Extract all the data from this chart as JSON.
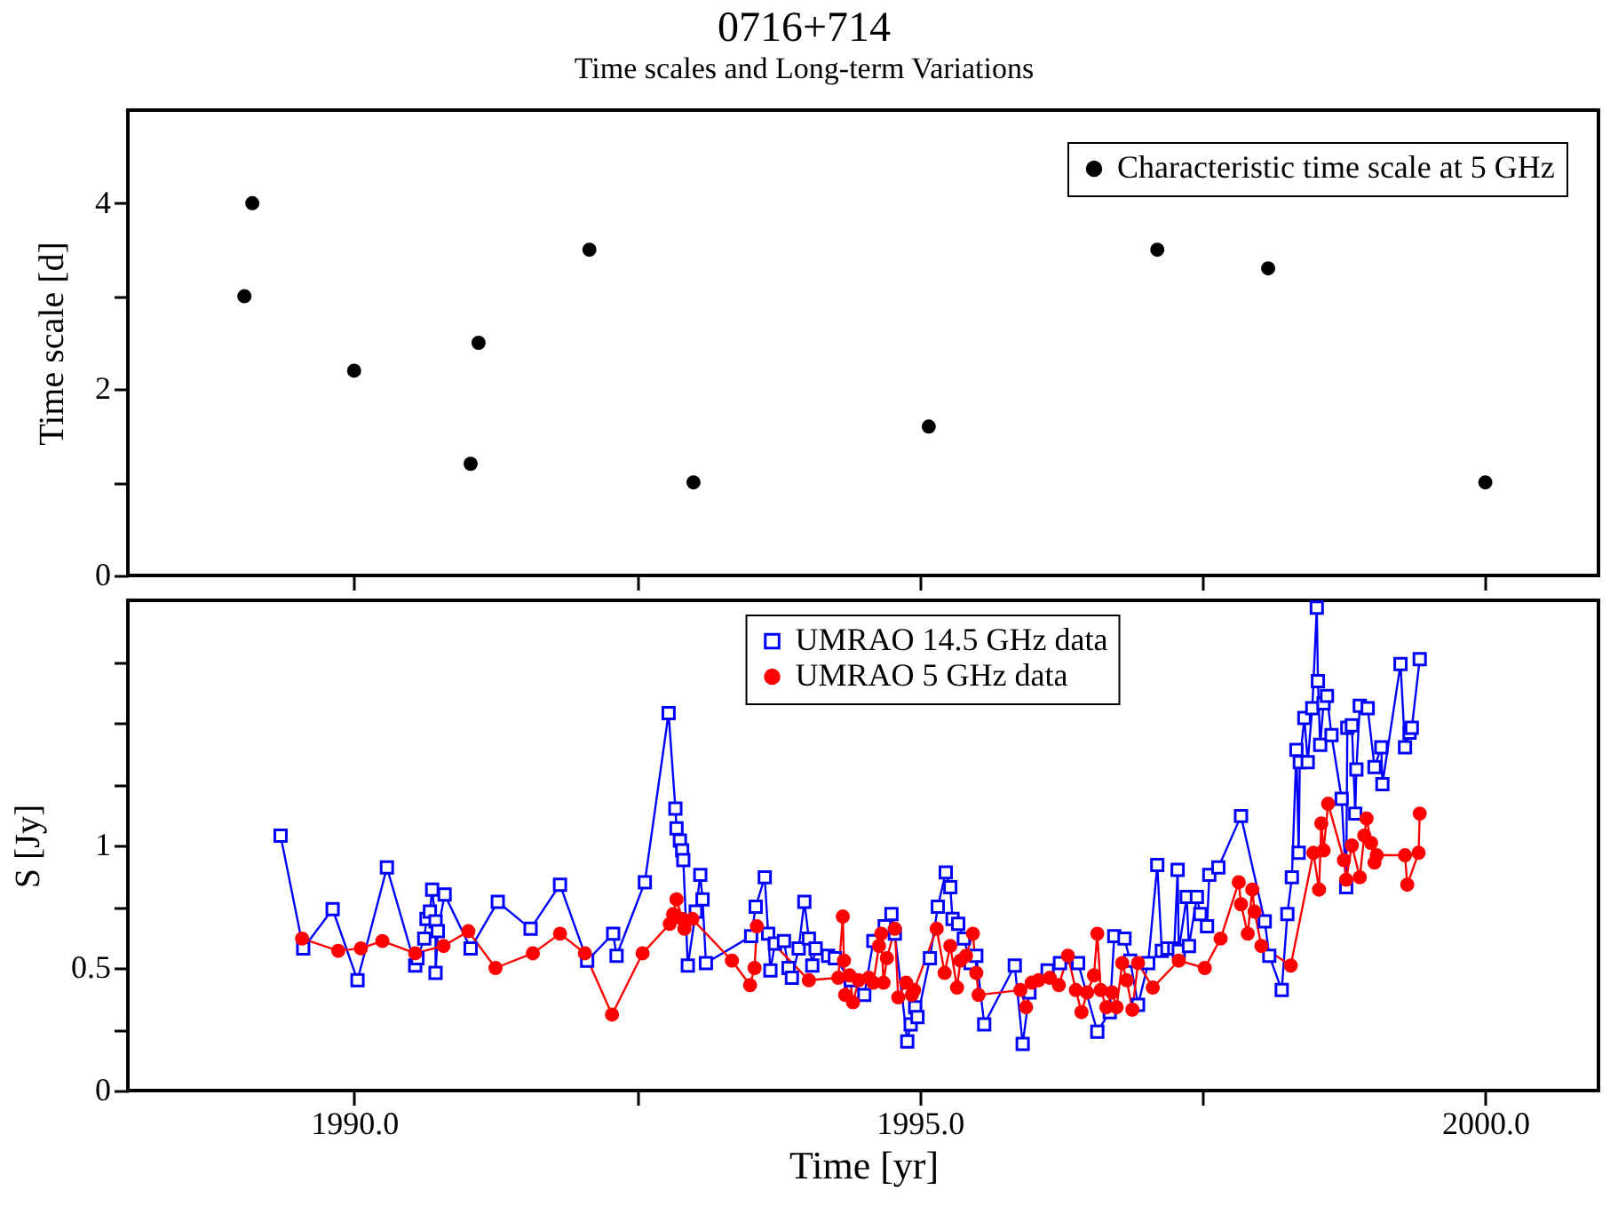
{
  "chart_data": [
    {
      "type": "scatter",
      "title": "0716+714",
      "subtitle": "Time scales and Long-term Variations",
      "ylabel": "Time scale [d]",
      "xlim": [
        1988,
        2001
      ],
      "xticks": [
        1990,
        1992.5,
        1995,
        1997.5,
        2000
      ],
      "ylim": [
        0,
        5
      ],
      "yticks": [
        0,
        {
          "value": 1,
          "label": null
        },
        2,
        {
          "value": 3,
          "label": null
        },
        4
      ],
      "tick_labels": "y",
      "legend": "top right",
      "marker": "circle",
      "grid": false,
      "series": [
        {
          "name": "Characteristic time scale at 5 GHz",
          "color": "#000000",
          "x": [
            1989.03,
            1989.1,
            1990.0,
            1991.03,
            1991.1,
            1992.08,
            1993.0,
            1995.08,
            1997.1,
            1998.08,
            2000.0
          ],
          "values": [
            3.0,
            4.0,
            2.2,
            1.2,
            2.5,
            3.5,
            1.0,
            1.6,
            3.5,
            3.3,
            1.0
          ]
        }
      ]
    },
    {
      "type": "line",
      "xlabel": "Time [yr]",
      "ylabel": "S [Jy]",
      "xlim": [
        1988,
        2001
      ],
      "xticks": [
        {
          "value": 1990,
          "label": "1990.0"
        },
        {
          "value": 1992.5,
          "label": null
        },
        {
          "value": 1995,
          "label": "1995.0"
        },
        {
          "value": 1997.5,
          "label": null
        },
        {
          "value": 2000,
          "label": "2000.0"
        }
      ],
      "ylim": [
        0,
        2
      ],
      "yticks": [
        0,
        {
          "value": 0.25,
          "label": null
        },
        0.5,
        {
          "value": 0.75,
          "label": null
        },
        1,
        {
          "value": 1.25,
          "label": null
        },
        {
          "value": 1.5,
          "label": null
        },
        {
          "value": 1.75,
          "label": null
        }
      ],
      "legend": "top",
      "grid": false,
      "series": [
        {
          "name": "UMRAO 14.5 GHz data",
          "color": "#0000ff",
          "marker": "square",
          "x": [
            1989.35,
            1989.55,
            1989.81,
            1990.03,
            1990.29,
            1990.54,
            1990.56,
            1990.62,
            1990.64,
            1990.67,
            1990.69,
            1990.72,
            1990.72,
            1990.74,
            1990.8,
            1991.03,
            1991.27,
            1991.56,
            1991.82,
            1992.06,
            1992.29,
            1992.32,
            1992.57,
            1992.78,
            1992.84,
            1992.85,
            1992.88,
            1992.9,
            1992.91,
            1992.95,
            1993.02,
            1993.06,
            1993.08,
            1993.11,
            1993.51,
            1993.55,
            1993.63,
            1993.66,
            1993.68,
            1993.72,
            1993.8,
            1993.84,
            1993.87,
            1993.93,
            1993.98,
            1994.02,
            1994.05,
            1994.08,
            1994.19,
            1994.25,
            1994.39,
            1994.51,
            1994.59,
            1994.69,
            1994.75,
            1994.78,
            1994.89,
            1994.92,
            1994.96,
            1994.98,
            1995.09,
            1995.16,
            1995.23,
            1995.27,
            1995.29,
            1995.34,
            1995.39,
            1995.45,
            1995.5,
            1995.57,
            1995.84,
            1995.91,
            1995.97,
            1996.13,
            1996.24,
            1996.4,
            1996.57,
            1996.68,
            1996.72,
            1996.81,
            1996.86,
            1996.93,
            1997.02,
            1997.1,
            1997.14,
            1997.19,
            1997.25,
            1997.28,
            1997.29,
            1997.36,
            1997.38,
            1997.45,
            1997.48,
            1997.54,
            1997.56,
            1997.64,
            1997.84,
            1998.05,
            1998.09,
            1998.2,
            1998.25,
            1998.29,
            1998.33,
            1998.35,
            1998.36,
            1998.4,
            1998.43,
            1998.47,
            1998.51,
            1998.52,
            1998.54,
            1998.57,
            1998.6,
            1998.64,
            1998.73,
            1998.77,
            1998.78,
            1998.82,
            1998.85,
            1998.86,
            1998.89,
            1998.96,
            1999.02,
            1999.08,
            1999.09,
            1999.25,
            1999.29,
            1999.33,
            1999.35,
            1999.42
          ],
          "values": [
            1.04,
            0.58,
            0.74,
            0.45,
            0.91,
            0.51,
            0.54,
            0.62,
            0.7,
            0.73,
            0.82,
            0.69,
            0.48,
            0.65,
            0.8,
            0.58,
            0.77,
            0.66,
            0.84,
            0.53,
            0.64,
            0.55,
            0.85,
            1.54,
            1.15,
            1.07,
            1.02,
            0.98,
            0.94,
            0.51,
            0.73,
            0.88,
            0.78,
            0.52,
            0.63,
            0.75,
            0.87,
            0.64,
            0.49,
            0.6,
            0.61,
            0.5,
            0.46,
            0.58,
            0.77,
            0.62,
            0.51,
            0.58,
            0.55,
            0.54,
            0.45,
            0.39,
            0.61,
            0.67,
            0.72,
            0.64,
            0.2,
            0.27,
            0.34,
            0.3,
            0.54,
            0.75,
            0.89,
            0.83,
            0.7,
            0.68,
            0.62,
            0.52,
            0.55,
            0.27,
            0.51,
            0.19,
            0.4,
            0.49,
            0.52,
            0.52,
            0.24,
            0.32,
            0.63,
            0.62,
            0.53,
            0.35,
            0.52,
            0.92,
            0.57,
            0.58,
            0.58,
            0.9,
            0.57,
            0.79,
            0.59,
            0.79,
            0.72,
            0.67,
            0.88,
            0.91,
            1.12,
            0.69,
            0.55,
            0.41,
            0.72,
            0.87,
            1.39,
            0.97,
            1.34,
            1.52,
            1.34,
            1.56,
            1.97,
            1.67,
            1.41,
            1.58,
            1.61,
            1.45,
            1.19,
            0.83,
            1.48,
            1.49,
            1.13,
            1.31,
            1.57,
            1.56,
            1.32,
            1.4,
            1.25,
            1.74,
            1.4,
            1.46,
            1.48,
            1.76
          ]
        },
        {
          "name": "UMRAO 5 GHz data",
          "color": "#ff0000",
          "marker": "circle",
          "x": [
            1989.54,
            1989.86,
            1990.06,
            1990.25,
            1990.54,
            1990.79,
            1991.01,
            1991.25,
            1991.58,
            1991.82,
            1992.04,
            1992.28,
            1992.55,
            1992.79,
            1992.82,
            1992.85,
            1992.9,
            1992.92,
            1992.99,
            1993.34,
            1993.5,
            1993.54,
            1993.56,
            1994.02,
            1994.28,
            1994.32,
            1994.33,
            1994.34,
            1994.38,
            1994.41,
            1994.46,
            1994.55,
            1994.59,
            1994.64,
            1994.66,
            1994.68,
            1994.71,
            1994.78,
            1994.81,
            1994.88,
            1994.93,
            1994.95,
            1995.15,
            1995.22,
            1995.27,
            1995.33,
            1995.36,
            1995.41,
            1995.47,
            1995.5,
            1995.52,
            1995.89,
            1995.94,
            1995.99,
            1996.05,
            1996.15,
            1996.23,
            1996.31,
            1996.38,
            1996.43,
            1996.48,
            1996.54,
            1996.57,
            1996.6,
            1996.65,
            1996.7,
            1996.74,
            1996.79,
            1996.83,
            1996.88,
            1996.93,
            1997.06,
            1997.29,
            1997.52,
            1997.66,
            1997.82,
            1997.84,
            1997.9,
            1997.94,
            1997.96,
            1998.02,
            1998.28,
            1998.48,
            1998.53,
            1998.55,
            1998.57,
            1998.61,
            1998.75,
            1998.77,
            1998.82,
            1998.89,
            1998.93,
            1998.95,
            1998.99,
            1999.02,
            1999.04,
            1999.29,
            1999.31,
            1999.41,
            1999.42
          ],
          "values": [
            0.62,
            0.57,
            0.58,
            0.61,
            0.56,
            0.59,
            0.65,
            0.5,
            0.56,
            0.64,
            0.56,
            0.31,
            0.56,
            0.68,
            0.72,
            0.78,
            0.7,
            0.66,
            0.7,
            0.53,
            0.43,
            0.5,
            0.67,
            0.45,
            0.46,
            0.71,
            0.53,
            0.39,
            0.47,
            0.36,
            0.45,
            0.46,
            0.44,
            0.59,
            0.64,
            0.44,
            0.54,
            0.66,
            0.38,
            0.44,
            0.39,
            0.41,
            0.66,
            0.48,
            0.59,
            0.42,
            0.53,
            0.55,
            0.64,
            0.48,
            0.39,
            0.41,
            0.34,
            0.44,
            0.45,
            0.46,
            0.43,
            0.55,
            0.41,
            0.32,
            0.4,
            0.47,
            0.64,
            0.41,
            0.34,
            0.4,
            0.34,
            0.52,
            0.45,
            0.33,
            0.52,
            0.42,
            0.53,
            0.5,
            0.62,
            0.85,
            0.76,
            0.64,
            0.82,
            0.73,
            0.59,
            0.51,
            0.97,
            0.82,
            1.09,
            0.98,
            1.17,
            0.94,
            0.86,
            1.0,
            0.87,
            1.04,
            1.11,
            1.01,
            0.93,
            0.96,
            0.96,
            0.84,
            0.97,
            1.13
          ]
        }
      ]
    }
  ]
}
